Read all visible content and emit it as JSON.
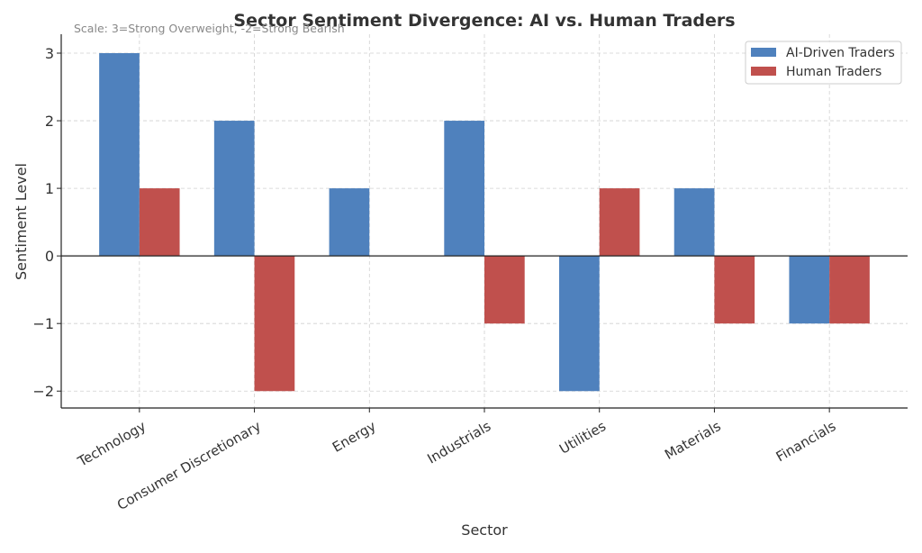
{
  "chart_data": {
    "type": "bar",
    "title": "Sector Sentiment Divergence: AI vs. Human Traders",
    "annotation": "Scale: 3=Strong Overweight, -2=Strong Bearish",
    "xlabel": "Sector",
    "ylabel": "Sentiment Level",
    "categories": [
      "Technology",
      "Consumer Discretionary",
      "Energy",
      "Industrials",
      "Utilities",
      "Materials",
      "Financials"
    ],
    "series": [
      {
        "name": "AI-Driven Traders",
        "color": "#4f81bd",
        "values": [
          3,
          2,
          1,
          2,
          -2,
          1,
          -1
        ]
      },
      {
        "name": "Human Traders",
        "color": "#c0504d",
        "values": [
          1,
          -2,
          0,
          -1,
          1,
          -1,
          -1
        ]
      }
    ],
    "yticks": [
      -2,
      -1,
      0,
      1,
      2,
      3
    ],
    "ylim": [
      -2.25,
      3.28
    ],
    "grid": true,
    "legend": "top-right"
  }
}
